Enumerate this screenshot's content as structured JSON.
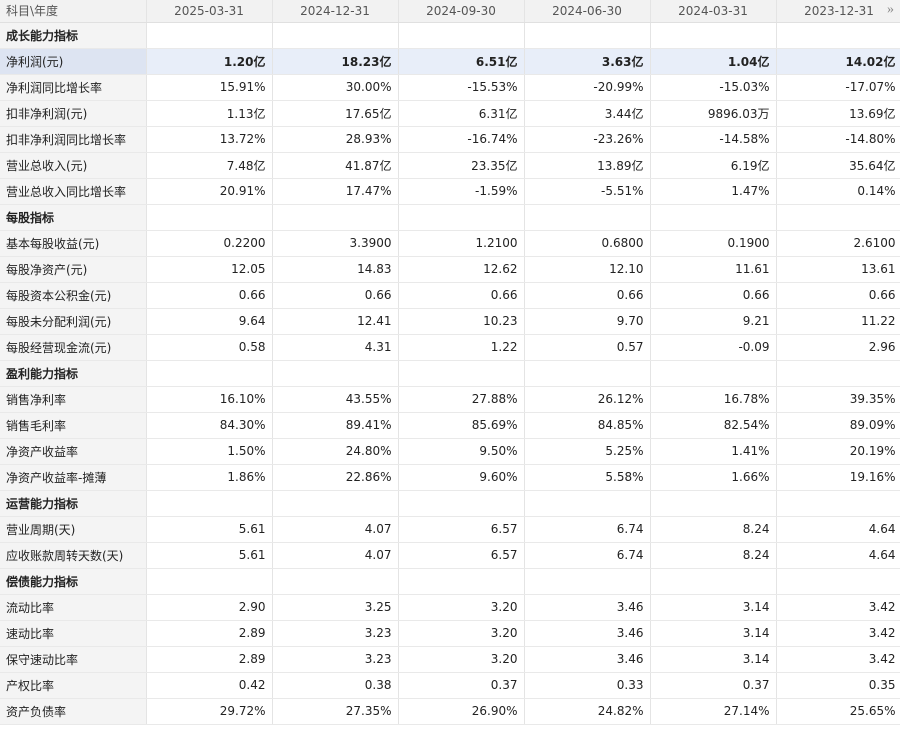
{
  "header": {
    "corner": "科目\\年度",
    "periods": [
      "2025-03-31",
      "2024-12-31",
      "2024-09-30",
      "2024-06-30",
      "2024-03-31",
      "2023-12-31"
    ],
    "more_icon": "»"
  },
  "sections": [
    {
      "title": "成长能力指标",
      "rows": [
        {
          "label": "净利润(元)",
          "values": [
            "1.20亿",
            "18.23亿",
            "6.51亿",
            "3.63亿",
            "1.04亿",
            "14.02亿"
          ]
        },
        {
          "label": "净利润同比增长率",
          "values": [
            "15.91%",
            "30.00%",
            "-15.53%",
            "-20.99%",
            "-15.03%",
            "-17.07%"
          ]
        },
        {
          "label": "扣非净利润(元)",
          "values": [
            "1.13亿",
            "17.65亿",
            "6.31亿",
            "3.44亿",
            "9896.03万",
            "13.69亿"
          ]
        },
        {
          "label": "扣非净利润同比增长率",
          "values": [
            "13.72%",
            "28.93%",
            "-16.74%",
            "-23.26%",
            "-14.58%",
            "-14.80%"
          ]
        },
        {
          "label": "营业总收入(元)",
          "values": [
            "7.48亿",
            "41.87亿",
            "23.35亿",
            "13.89亿",
            "6.19亿",
            "35.64亿"
          ]
        },
        {
          "label": "营业总收入同比增长率",
          "values": [
            "20.91%",
            "17.47%",
            "-1.59%",
            "-5.51%",
            "1.47%",
            "0.14%"
          ]
        }
      ]
    },
    {
      "title": "每股指标",
      "rows": [
        {
          "label": "基本每股收益(元)",
          "values": [
            "0.2200",
            "3.3900",
            "1.2100",
            "0.6800",
            "0.1900",
            "2.6100"
          ]
        },
        {
          "label": "每股净资产(元)",
          "values": [
            "12.05",
            "14.83",
            "12.62",
            "12.10",
            "11.61",
            "13.61"
          ]
        },
        {
          "label": "每股资本公积金(元)",
          "values": [
            "0.66",
            "0.66",
            "0.66",
            "0.66",
            "0.66",
            "0.66"
          ]
        },
        {
          "label": "每股未分配利润(元)",
          "values": [
            "9.64",
            "12.41",
            "10.23",
            "9.70",
            "9.21",
            "11.22"
          ]
        },
        {
          "label": "每股经营现金流(元)",
          "values": [
            "0.58",
            "4.31",
            "1.22",
            "0.57",
            "-0.09",
            "2.96"
          ]
        }
      ]
    },
    {
      "title": "盈利能力指标",
      "rows": [
        {
          "label": "销售净利率",
          "values": [
            "16.10%",
            "43.55%",
            "27.88%",
            "26.12%",
            "16.78%",
            "39.35%"
          ]
        },
        {
          "label": "销售毛利率",
          "values": [
            "84.30%",
            "89.41%",
            "85.69%",
            "84.85%",
            "82.54%",
            "89.09%"
          ]
        },
        {
          "label": "净资产收益率",
          "values": [
            "1.50%",
            "24.80%",
            "9.50%",
            "5.25%",
            "1.41%",
            "20.19%"
          ]
        },
        {
          "label": "净资产收益率-摊薄",
          "values": [
            "1.86%",
            "22.86%",
            "9.60%",
            "5.58%",
            "1.66%",
            "19.16%"
          ]
        }
      ]
    },
    {
      "title": "运营能力指标",
      "rows": [
        {
          "label": "营业周期(天)",
          "values": [
            "5.61",
            "4.07",
            "6.57",
            "6.74",
            "8.24",
            "4.64"
          ]
        },
        {
          "label": "应收账款周转天数(天)",
          "values": [
            "5.61",
            "4.07",
            "6.57",
            "6.74",
            "8.24",
            "4.64"
          ]
        }
      ]
    },
    {
      "title": "偿债能力指标",
      "rows": [
        {
          "label": "流动比率",
          "values": [
            "2.90",
            "3.25",
            "3.20",
            "3.46",
            "3.14",
            "3.42"
          ]
        },
        {
          "label": "速动比率",
          "values": [
            "2.89",
            "3.23",
            "3.20",
            "3.46",
            "3.14",
            "3.42"
          ]
        },
        {
          "label": "保守速动比率",
          "values": [
            "2.89",
            "3.23",
            "3.20",
            "3.46",
            "3.14",
            "3.42"
          ]
        },
        {
          "label": "产权比率",
          "values": [
            "0.42",
            "0.38",
            "0.37",
            "0.33",
            "0.37",
            "0.35"
          ]
        },
        {
          "label": "资产负债率",
          "values": [
            "29.72%",
            "27.35%",
            "26.90%",
            "24.82%",
            "27.14%",
            "25.65%"
          ]
        }
      ]
    }
  ],
  "highlighted_row": "净利润(元)"
}
